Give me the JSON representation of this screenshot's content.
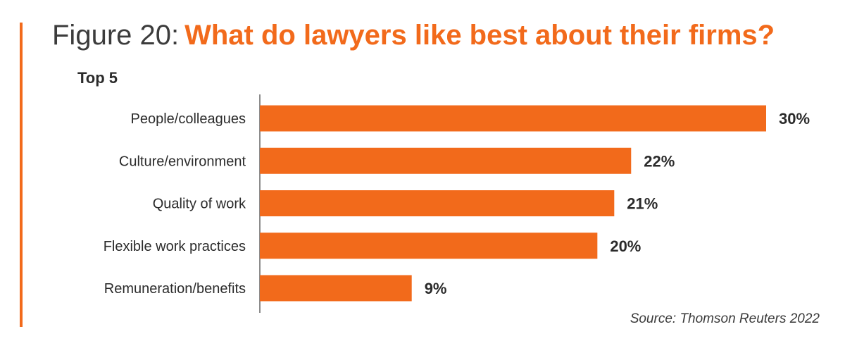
{
  "colors": {
    "accent": "#f26a1b",
    "bar": "#f26a1b",
    "axis": "#666666"
  },
  "chart_data": {
    "type": "bar",
    "orientation": "horizontal",
    "title_prefix": "Figure 20:",
    "title": "What do lawyers like best about their firms?",
    "subtitle": "Top 5",
    "source": "Source: Thomson Reuters 2022",
    "categories": [
      "People/colleagues",
      "Culture/environment",
      "Quality of work",
      "Flexible work practices",
      "Remuneration/benefits"
    ],
    "values": [
      30,
      22,
      21,
      20,
      9
    ],
    "value_labels": [
      "30%",
      "22%",
      "21%",
      "20%",
      "9%"
    ],
    "unit": "%",
    "xlim": [
      0,
      30
    ],
    "grid": false,
    "legend": "none"
  }
}
